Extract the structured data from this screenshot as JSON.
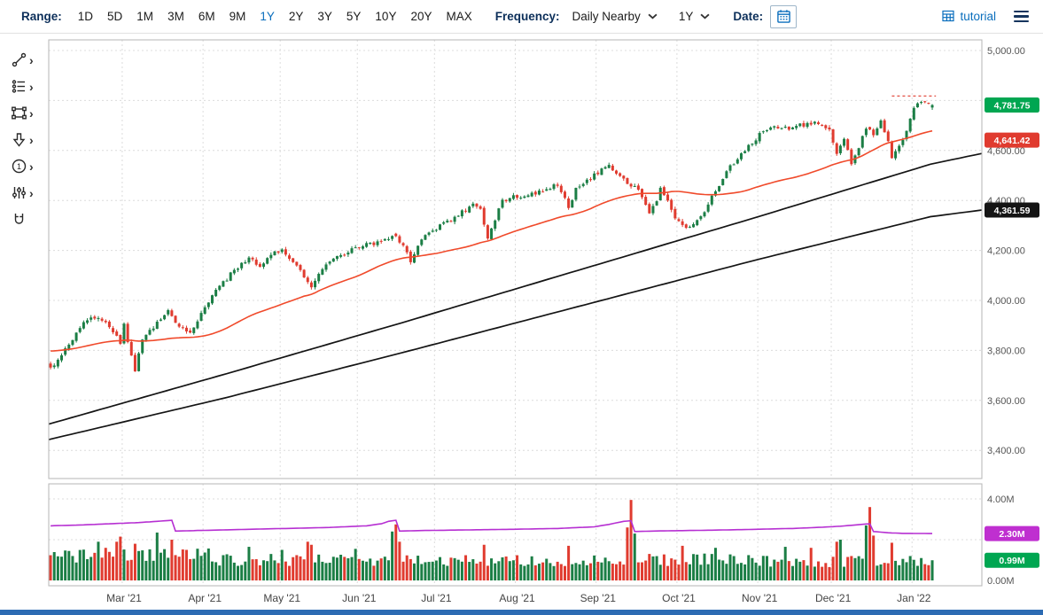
{
  "toolbar": {
    "range_label": "Range:",
    "range_options": [
      "1D",
      "5D",
      "1M",
      "3M",
      "6M",
      "9M",
      "1Y",
      "2Y",
      "3Y",
      "5Y",
      "10Y",
      "20Y",
      "MAX"
    ],
    "range_selected": "1Y",
    "frequency_label": "Frequency:",
    "frequency_value": "Daily Nearby",
    "period_value": "1Y",
    "date_label": "Date:",
    "tutorial_label": "tutorial"
  },
  "icons": {
    "calendar": "calendar-icon",
    "tutorial": "tutorial-grid-icon",
    "menu": "hamburger-menu-icon",
    "dropdown": "chevron-down-icon"
  },
  "side_tools": [
    {
      "name": "trendline-tool",
      "chevron": true
    },
    {
      "name": "studies-tool",
      "chevron": true
    },
    {
      "name": "shapes-tool",
      "chevron": true
    },
    {
      "name": "arrow-annotation-tool",
      "chevron": true
    },
    {
      "name": "number-annotation-tool",
      "chevron": true
    },
    {
      "name": "indicator-settings-tool",
      "chevron": true
    },
    {
      "name": "magnet-tool",
      "chevron": false
    }
  ],
  "chart_data": {
    "type": "candlestick",
    "frequency": "Daily Nearby",
    "range": "1Y",
    "days": 241,
    "slots": 254,
    "noise_amp": 9,
    "last_close": 4781.75,
    "price_axis": {
      "top_value": 5000,
      "bottom_value": 3400,
      "ticks": [
        {
          "label": "5,000.00",
          "value": 5000
        },
        {
          "label": "4,800.00",
          "value": 4800
        },
        {
          "label": "4,600.00",
          "value": 4600
        },
        {
          "label": "4,400.00",
          "value": 4400
        },
        {
          "label": "4,200.00",
          "value": 4200
        },
        {
          "label": "4,000.00",
          "value": 4000
        },
        {
          "label": "3,800.00",
          "value": 3800
        },
        {
          "label": "3,600.00",
          "value": 3600
        },
        {
          "label": "3,400.00",
          "value": 3400
        }
      ]
    },
    "month_labels": [
      {
        "label": "Mar '21",
        "i": 20
      },
      {
        "label": "Apr '21",
        "i": 42
      },
      {
        "label": "May '21",
        "i": 63
      },
      {
        "label": "Jun '21",
        "i": 84
      },
      {
        "label": "Jul '21",
        "i": 105
      },
      {
        "label": "Aug '21",
        "i": 127
      },
      {
        "label": "Sep '21",
        "i": 149
      },
      {
        "label": "Oct '21",
        "i": 171
      },
      {
        "label": "Nov '21",
        "i": 193
      },
      {
        "label": "Dec '21",
        "i": 213
      },
      {
        "label": "Jan '22",
        "i": 235
      }
    ],
    "price_anchors": [
      [
        0,
        3728
      ],
      [
        2,
        3768
      ],
      [
        5,
        3825
      ],
      [
        9,
        3908
      ],
      [
        12,
        3934
      ],
      [
        14,
        3918
      ],
      [
        17,
        3880
      ],
      [
        19,
        3822
      ],
      [
        20,
        3898
      ],
      [
        23,
        3724
      ],
      [
        25,
        3842
      ],
      [
        27,
        3878
      ],
      [
        30,
        3932
      ],
      [
        32,
        3958
      ],
      [
        34,
        3918
      ],
      [
        36,
        3888
      ],
      [
        38,
        3868
      ],
      [
        41,
        3942
      ],
      [
        43,
        3998
      ],
      [
        46,
        4052
      ],
      [
        50,
        4120
      ],
      [
        54,
        4168
      ],
      [
        57,
        4138
      ],
      [
        60,
        4182
      ],
      [
        63,
        4204
      ],
      [
        66,
        4158
      ],
      [
        68,
        4118
      ],
      [
        71,
        4048
      ],
      [
        73,
        4098
      ],
      [
        75,
        4142
      ],
      [
        78,
        4172
      ],
      [
        81,
        4196
      ],
      [
        83,
        4212
      ],
      [
        86,
        4224
      ],
      [
        89,
        4232
      ],
      [
        92,
        4246
      ],
      [
        94,
        4256
      ],
      [
        96,
        4222
      ],
      [
        98,
        4152
      ],
      [
        100,
        4224
      ],
      [
        103,
        4272
      ],
      [
        106,
        4298
      ],
      [
        109,
        4322
      ],
      [
        112,
        4352
      ],
      [
        115,
        4384
      ],
      [
        117,
        4368
      ],
      [
        119,
        4254
      ],
      [
        121,
        4328
      ],
      [
        123,
        4398
      ],
      [
        126,
        4412
      ],
      [
        129,
        4422
      ],
      [
        132,
        4432
      ],
      [
        135,
        4446
      ],
      [
        138,
        4462
      ],
      [
        140,
        4418
      ],
      [
        141,
        4372
      ],
      [
        143,
        4442
      ],
      [
        146,
        4482
      ],
      [
        149,
        4512
      ],
      [
        152,
        4542
      ],
      [
        154,
        4516
      ],
      [
        156,
        4488
      ],
      [
        158,
        4462
      ],
      [
        160,
        4448
      ],
      [
        163,
        4352
      ],
      [
        165,
        4402
      ],
      [
        166,
        4442
      ],
      [
        168,
        4398
      ],
      [
        170,
        4332
      ],
      [
        172,
        4308
      ],
      [
        174,
        4288
      ],
      [
        176,
        4322
      ],
      [
        178,
        4358
      ],
      [
        181,
        4438
      ],
      [
        183,
        4478
      ],
      [
        185,
        4538
      ],
      [
        187,
        4568
      ],
      [
        189,
        4598
      ],
      [
        191,
        4632
      ],
      [
        193,
        4662
      ],
      [
        195,
        4682
      ],
      [
        197,
        4692
      ],
      [
        200,
        4688
      ],
      [
        203,
        4698
      ],
      [
        206,
        4702
      ],
      [
        208,
        4712
      ],
      [
        210,
        4698
      ],
      [
        212,
        4678
      ],
      [
        214,
        4592
      ],
      [
        216,
        4652
      ],
      [
        218,
        4538
      ],
      [
        220,
        4618
      ],
      [
        222,
        4692
      ],
      [
        224,
        4668
      ],
      [
        226,
        4712
      ],
      [
        228,
        4632
      ],
      [
        229,
        4572
      ],
      [
        231,
        4618
      ],
      [
        233,
        4682
      ],
      [
        235,
        4778
      ],
      [
        237,
        4792
      ],
      [
        239,
        4786
      ],
      [
        240,
        4781.75
      ]
    ],
    "prehistory_anchors": [
      [
        -50,
        3700
      ],
      [
        -38,
        3768
      ],
      [
        -26,
        3830
      ],
      [
        -16,
        3856
      ],
      [
        -8,
        3846
      ],
      [
        -3,
        3762
      ],
      [
        -1,
        3724
      ]
    ],
    "force_down": [
      94,
      158,
      223
    ],
    "force_up": [
      240
    ],
    "red_ma": {
      "window": 50,
      "last_label": "4,641.42"
    },
    "black_ma_upper_anchors": [
      [
        0,
        3505
      ],
      [
        48,
        3705
      ],
      [
        96,
        3910
      ],
      [
        144,
        4120
      ],
      [
        192,
        4330
      ],
      [
        240,
        4545
      ],
      [
        254,
        4588
      ]
    ],
    "black_ma_lower_anchors": [
      [
        0,
        3443
      ],
      [
        48,
        3610
      ],
      [
        96,
        3790
      ],
      [
        144,
        3975
      ],
      [
        192,
        4160
      ],
      [
        240,
        4335
      ],
      [
        254,
        4361.59
      ]
    ],
    "price_badges": [
      {
        "label": "4,781.75",
        "value": 4781.75,
        "color": "#00a651"
      },
      {
        "label": "4,641.42",
        "value": 4641.42,
        "color": "#e03b2f"
      },
      {
        "label": "4,361.59",
        "value": 4361.59,
        "color": "#141414"
      }
    ],
    "high_marker": {
      "price": 4818,
      "from_day": 229,
      "to_day": 241
    },
    "volume": {
      "axis_ticks": [
        {
          "label": "4.00M",
          "value": 4
        },
        {
          "label": "0.00M",
          "value": 0
        }
      ],
      "base_min": 0.7,
      "base_span": 0.62,
      "spikes": {
        "13": 1.9,
        "15": 1.6,
        "18": 1.9,
        "19": 2.15,
        "23": 1.8,
        "29": 2.35,
        "33": 2.0,
        "54": 1.65,
        "63": 1.5,
        "70": 1.9,
        "71": 1.75,
        "83": 1.55,
        "93": 2.4,
        "94": 2.75,
        "95": 1.9,
        "118": 1.75,
        "141": 1.7,
        "157": 2.6,
        "158": 3.95,
        "159": 2.3,
        "172": 1.7,
        "181": 1.6,
        "200": 1.65,
        "207": 1.6,
        "214": 1.9,
        "215": 2.0,
        "222": 2.7,
        "223": 3.6,
        "224": 2.2,
        "229": 1.85,
        "238": 0.8,
        "239": 0.75,
        "240": 0.99
      },
      "oi_anchors": [
        [
          0,
          2.68
        ],
        [
          8,
          2.72
        ],
        [
          16,
          2.78
        ],
        [
          24,
          2.84
        ],
        [
          29,
          2.9
        ],
        [
          32,
          2.94
        ],
        [
          33,
          2.95
        ],
        [
          34,
          2.42
        ],
        [
          40,
          2.45
        ],
        [
          52,
          2.5
        ],
        [
          64,
          2.55
        ],
        [
          76,
          2.6
        ],
        [
          86,
          2.68
        ],
        [
          90,
          2.78
        ],
        [
          92,
          2.9
        ],
        [
          94,
          2.95
        ],
        [
          95,
          2.42
        ],
        [
          102,
          2.45
        ],
        [
          114,
          2.48
        ],
        [
          126,
          2.51
        ],
        [
          138,
          2.55
        ],
        [
          148,
          2.63
        ],
        [
          152,
          2.75
        ],
        [
          156,
          2.9
        ],
        [
          158,
          2.93
        ],
        [
          159,
          2.4
        ],
        [
          166,
          2.43
        ],
        [
          178,
          2.46
        ],
        [
          190,
          2.5
        ],
        [
          202,
          2.55
        ],
        [
          210,
          2.61
        ],
        [
          215,
          2.66
        ],
        [
          219,
          2.72
        ],
        [
          222,
          2.77
        ],
        [
          223,
          2.78
        ],
        [
          224,
          2.4
        ],
        [
          228,
          2.34
        ],
        [
          232,
          2.31
        ],
        [
          240,
          2.3
        ]
      ],
      "badges": [
        {
          "label": "2.30M",
          "value": 2.3,
          "color": "#bf2fd0"
        },
        {
          "label": "0.99M",
          "value": 0.99,
          "color": "#00a651"
        }
      ]
    },
    "colors": {
      "up": "#1b7e45",
      "down": "#e03b2f",
      "ma_red": "#f04a2b",
      "ma_black": "#141414",
      "oi": "#b62fd2",
      "grid": "#dcdcdc",
      "frame": "#b5b5b5",
      "axis_text": "#555555",
      "month_text": "#444444",
      "accent_blue": "#0a6ebd",
      "bottom_bar": "#2c6bb3"
    }
  }
}
